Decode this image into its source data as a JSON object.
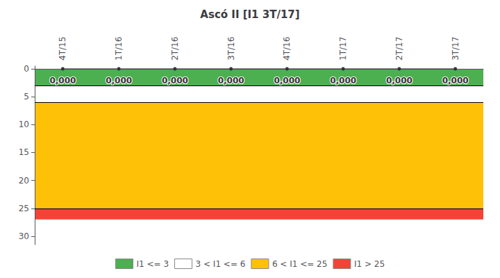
{
  "chart_data": {
    "type": "line",
    "title": "Ascó II [I1 3T/17]",
    "categories": [
      "4T/15",
      "1T/16",
      "2T/16",
      "3T/16",
      "4T/16",
      "1T/17",
      "2T/17",
      "3T/17"
    ],
    "values": [
      0.0,
      0.0,
      0.0,
      0.0,
      0.0,
      0.0,
      0.0,
      0.0
    ],
    "value_labels": [
      "0,000",
      "0,000",
      "0,000",
      "0,000",
      "0,000",
      "0,000",
      "0,000",
      "0,000"
    ],
    "data_labels": true,
    "color": "#333333",
    "marker": "circle",
    "ylim": [
      31.5,
      -0.5
    ],
    "yticks": [
      0,
      5,
      10,
      15,
      20,
      25,
      30
    ],
    "grid": false,
    "legend": "bottom",
    "zones": [
      {
        "name": "I1 <= 3",
        "from": 0,
        "to": 3,
        "color": "#4CAF50"
      },
      {
        "name": "3 < I1 <= 6",
        "from": 3,
        "to": 6,
        "color": "#FFFFFF"
      },
      {
        "name": "6 < I1 <= 25",
        "from": 6,
        "to": 25,
        "color": "#FFC107"
      },
      {
        "name": "I1 > 25",
        "from": 25,
        "to": 27,
        "color": "#F44336"
      }
    ]
  }
}
